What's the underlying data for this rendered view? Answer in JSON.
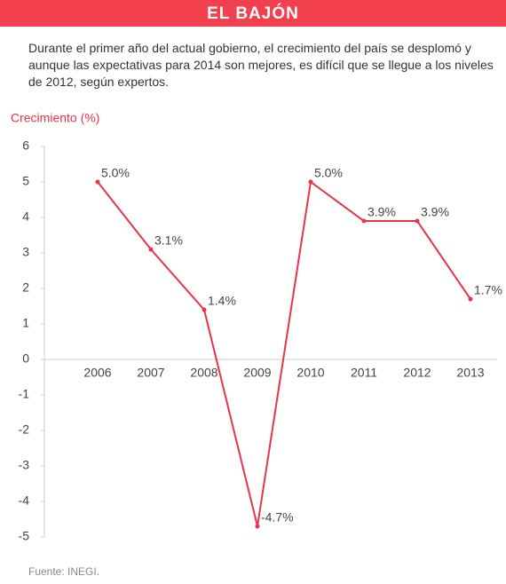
{
  "chart_data": {
    "type": "line",
    "title": "EL BAJÓN",
    "subtitle": "Durante el primer año del actual gobierno, el crecimiento del país se desplomó y aunque las expectativas para 2014 son mejores, es difícil que se llegue a los niveles de 2012, según expertos.",
    "y_label": "Crecimiento (%)",
    "source": "Fuente: INEGI.",
    "categories": [
      "2006",
      "2007",
      "2008",
      "2009",
      "2010",
      "2011",
      "2012",
      "2013"
    ],
    "series": [
      {
        "name": "Crecimiento",
        "color": "#e8334a",
        "values": [
          5.0,
          3.1,
          1.4,
          -4.7,
          5.0,
          3.9,
          3.9,
          1.7
        ],
        "value_labels": [
          "5.0%",
          "3.1%",
          "1.4%",
          "-4.7%",
          "5.0%",
          "3.9%",
          "3.9%",
          "1.7%"
        ]
      }
    ],
    "ylim": [
      -5,
      6
    ],
    "yticks": [
      6,
      5,
      4,
      3,
      2,
      1,
      0,
      -1,
      -2,
      -3,
      -4,
      -5
    ]
  }
}
